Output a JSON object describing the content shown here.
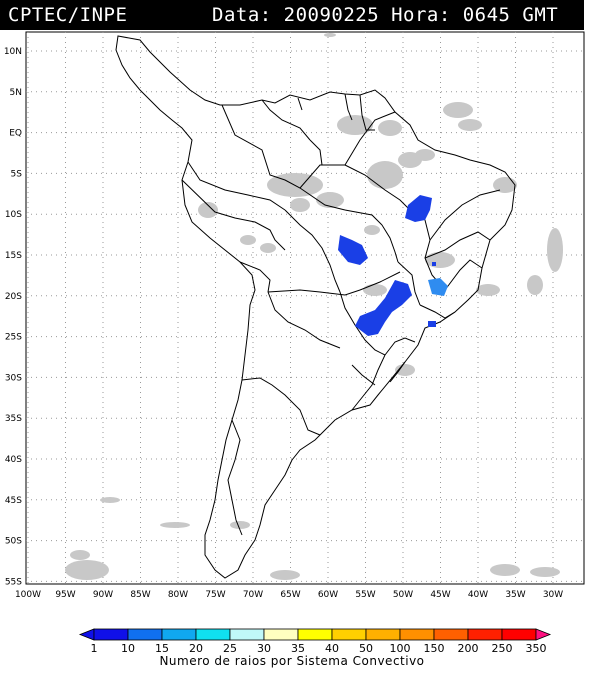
{
  "header": {
    "source": "CPTEC/INPE",
    "datetime": "Data: 20090225 Hora: 0645 GMT"
  },
  "map": {
    "lat_labels": [
      "10N",
      "5N",
      "EQ",
      "5S",
      "10S",
      "15S",
      "20S",
      "25S",
      "30S",
      "35S",
      "40S",
      "45S",
      "50S",
      "55S"
    ],
    "lon_labels": [
      "100W",
      "95W",
      "90W",
      "85W",
      "80W",
      "75W",
      "70W",
      "65W",
      "60W",
      "55W",
      "50W",
      "45W",
      "40W",
      "35W",
      "30W"
    ],
    "colors": {
      "land_outline": "#000000",
      "cloud": "#c8c8c8",
      "lightning_dark": "#1a3fe6",
      "lightning_light": "#2f8cf0"
    }
  },
  "legend": {
    "labels": [
      "1",
      "10",
      "15",
      "20",
      "25",
      "30",
      "35",
      "40",
      "50",
      "100",
      "150",
      "200",
      "250",
      "350"
    ],
    "colors": [
      "#1010e8",
      "#1070f0",
      "#10a8f0",
      "#10e0f0",
      "#c0f8f8",
      "#ffffc0",
      "#ffff00",
      "#ffd000",
      "#ffb000",
      "#ff9000",
      "#ff6000",
      "#ff2000",
      "#ff0000"
    ],
    "caption": "Numero de raios por Sistema Convectivo"
  }
}
